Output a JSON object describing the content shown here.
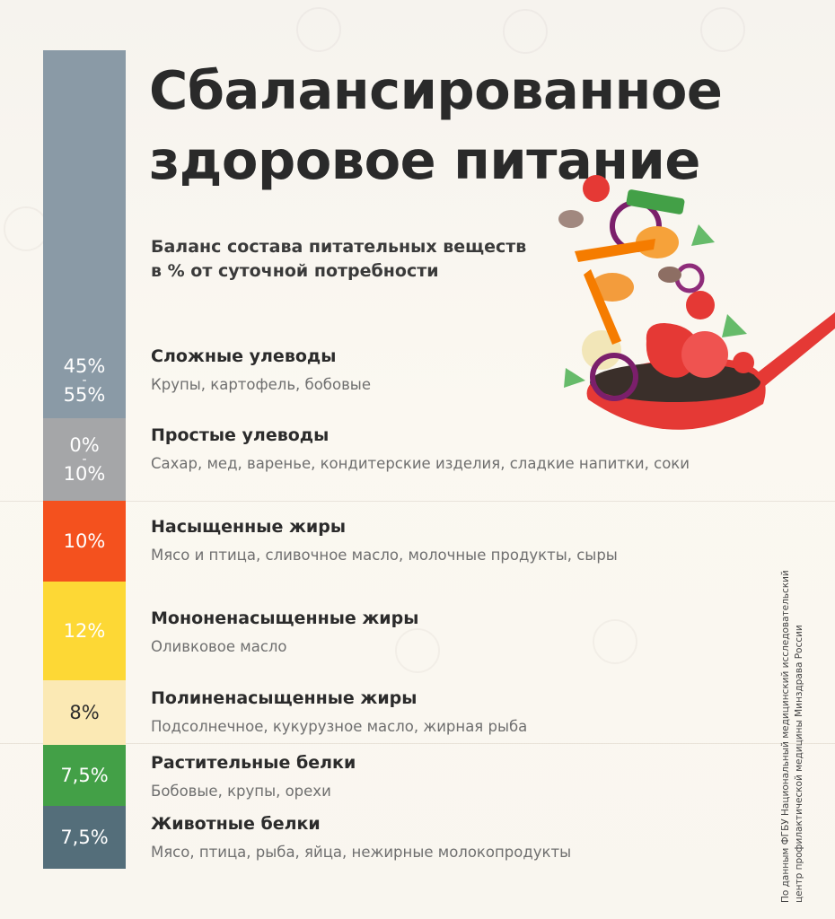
{
  "title_line1": "Сбалансированное",
  "title_line2": "здоровое питание",
  "subtitle_line1": "Баланс состава питательных веществ",
  "subtitle_line2": "в % от суточной потребности",
  "source_line1": "По данным ФГБУ Национальный медицинский исследовательский",
  "source_line2": "центр профилактической медицины Минздрава России",
  "colors": {
    "complex_carbs": "#8a9aa6",
    "simple_carbs": "#a5a6a8",
    "saturated_fats": "#f4511e",
    "mono_fats": "#fdd835",
    "poly_fats": "#fbe9b4",
    "plant_protein": "#43a047",
    "animal_protein": "#546e7a"
  },
  "chart_data": {
    "type": "bar",
    "orientation": "stacked-vertical",
    "unit": "%",
    "series": [
      {
        "name": "Сложные улеводы",
        "label_top": "45%",
        "label_bottom": "55%",
        "range": [
          45,
          55
        ],
        "description": "Крупы, картофель, бобовые"
      },
      {
        "name": "Простые улеводы",
        "label_top": "0%",
        "label_bottom": "10%",
        "range": [
          0,
          10
        ],
        "description": "Сахар, мед, варенье, кондитерские изделия, сладкие напитки, соки"
      },
      {
        "name": "Насыщенные жиры",
        "label": "10%",
        "value": 10,
        "description": "Мясо и птица, сливочное масло, молочные продукты, сыры"
      },
      {
        "name": "Мононенасыщенные жиры",
        "label": "12%",
        "value": 12,
        "description": "Оливковое масло"
      },
      {
        "name": "Полиненасыщенные жиры",
        "label": "8%",
        "value": 8,
        "description": "Подсолнечное, кукурузное масло, жирная рыба"
      },
      {
        "name": "Растительные белки",
        "label": "7,5%",
        "value": 7.5,
        "description": "Бобовые, крупы, орехи"
      },
      {
        "name": "Животные белки",
        "label": "7,5%",
        "value": 7.5,
        "description": "Мясо, птица, рыба, яйца, нежирные молокопродукты"
      }
    ]
  }
}
